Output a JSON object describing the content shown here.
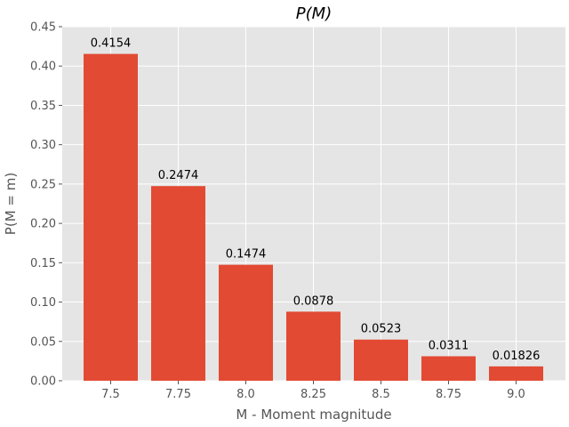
{
  "chart_data": {
    "type": "bar",
    "title": "P(M)",
    "xlabel": "M - Moment magnitude",
    "ylabel": "P(M = m)",
    "categories": [
      "7.5",
      "7.75",
      "8.0",
      "8.25",
      "8.5",
      "8.75",
      "9.0"
    ],
    "values": [
      0.4154,
      0.2474,
      0.1474,
      0.0878,
      0.0523,
      0.0311,
      0.01826
    ],
    "value_labels": [
      "0.4154",
      "0.2474",
      "0.1474",
      "0.0878",
      "0.0523",
      "0.0311",
      "0.01826"
    ],
    "yticks": [
      "0.00",
      "0.05",
      "0.10",
      "0.15",
      "0.20",
      "0.25",
      "0.30",
      "0.35",
      "0.40",
      "0.45"
    ],
    "ylim": [
      0,
      0.45
    ],
    "grid": true,
    "legend": "none",
    "style": {
      "bar_color": "#E24A33",
      "plot_background": "#E5E5E5",
      "grid_color": "#FFFFFF"
    }
  }
}
